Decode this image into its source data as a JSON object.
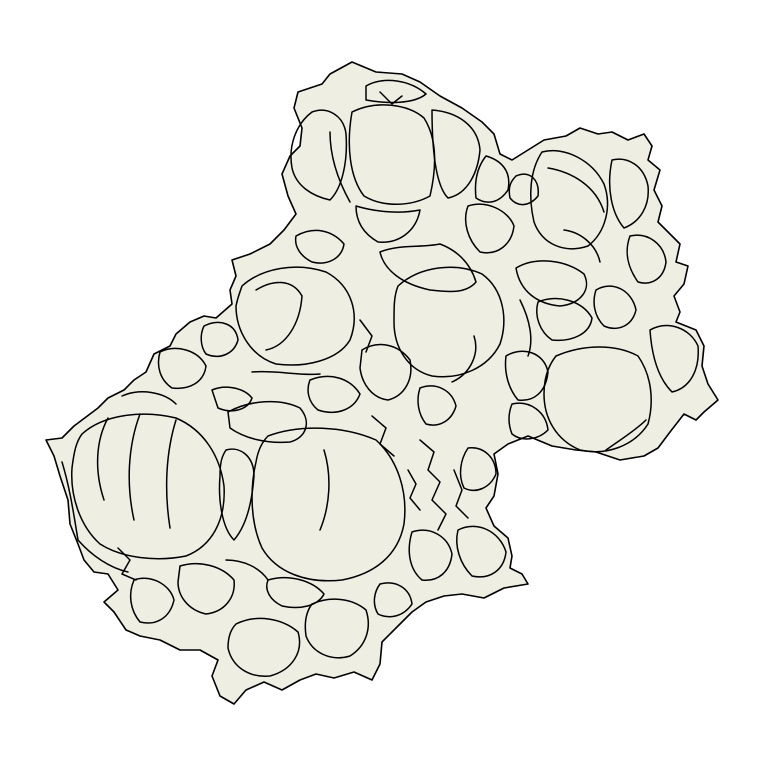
{
  "map": {
    "fill_color": "#eeeee3",
    "stroke_color": "#000000",
    "background": "#ffffff"
  }
}
